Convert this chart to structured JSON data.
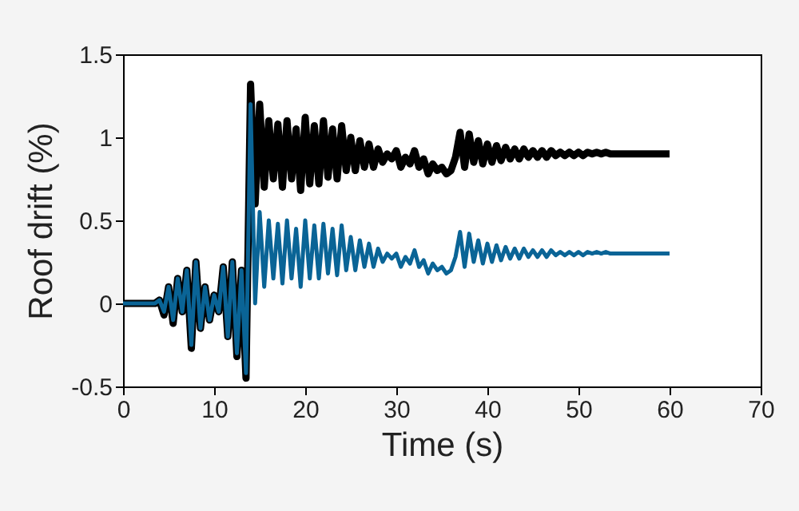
{
  "chart_data": {
    "type": "line",
    "xlabel": "Time (s)",
    "ylabel": "Roof drift (%)",
    "x": [
      0,
      0.5,
      1,
      1.5,
      2,
      2.5,
      3,
      3.5,
      4,
      4.5,
      5,
      5.5,
      6,
      6.5,
      7,
      7.5,
      8,
      8.5,
      9,
      9.5,
      10,
      10.5,
      11,
      11.5,
      12,
      12.5,
      13,
      13.5,
      14,
      14.5,
      15,
      15.5,
      16,
      16.5,
      17,
      17.5,
      18,
      18.5,
      19,
      19.5,
      20,
      20.5,
      21,
      21.5,
      22,
      22.5,
      23,
      23.5,
      24,
      24.5,
      25,
      25.5,
      26,
      26.5,
      27,
      27.5,
      28,
      28.5,
      29,
      29.5,
      30,
      30.5,
      31,
      31.5,
      32,
      32.5,
      33,
      33.5,
      34,
      34.5,
      35,
      35.5,
      36,
      36.5,
      37,
      37.5,
      38,
      38.5,
      39,
      39.5,
      40,
      40.5,
      41,
      41.5,
      42,
      42.5,
      43,
      43.5,
      44,
      44.5,
      45,
      45.5,
      46,
      46.5,
      47,
      47.5,
      48,
      48.5,
      49,
      49.5,
      50,
      50.5,
      51,
      51.5,
      52,
      52.5,
      53,
      53.5,
      54,
      54.5,
      55,
      55.5,
      56,
      56.5,
      57,
      57.5,
      58,
      58.5,
      59,
      59.5,
      60
    ],
    "series": [
      {
        "color": "#000000",
        "values": [
          0,
          0,
          0,
          0,
          0,
          0,
          0,
          0,
          0.02,
          -0.07,
          0.1,
          -0.12,
          0.15,
          -0.05,
          0.2,
          -0.27,
          0.25,
          -0.15,
          0.1,
          -0.1,
          0.05,
          -0.05,
          0.22,
          -0.2,
          0.25,
          -0.32,
          0.2,
          -0.45,
          1.32,
          0.6,
          1.2,
          0.7,
          1.1,
          0.75,
          1.08,
          0.7,
          1.1,
          0.75,
          1.05,
          0.68,
          1.12,
          0.72,
          1.07,
          0.72,
          1.1,
          0.76,
          1.05,
          0.75,
          1.07,
          0.8,
          1.0,
          0.8,
          0.98,
          0.82,
          0.96,
          0.82,
          0.93,
          0.85,
          0.9,
          0.87,
          0.92,
          0.82,
          0.88,
          0.84,
          0.92,
          0.82,
          0.87,
          0.78,
          0.84,
          0.8,
          0.82,
          0.78,
          0.8,
          0.88,
          1.03,
          0.82,
          1.02,
          0.85,
          0.98,
          0.84,
          0.96,
          0.85,
          0.95,
          0.86,
          0.94,
          0.87,
          0.93,
          0.87,
          0.93,
          0.88,
          0.92,
          0.88,
          0.92,
          0.88,
          0.92,
          0.89,
          0.91,
          0.89,
          0.91,
          0.89,
          0.91,
          0.89,
          0.91,
          0.9,
          0.91,
          0.9,
          0.91,
          0.9,
          0.9,
          0.9,
          0.9,
          0.9,
          0.9,
          0.9,
          0.9,
          0.9,
          0.9,
          0.9,
          0.9,
          0.9,
          0.9
        ]
      },
      {
        "color": "#0a6496",
        "values": [
          0,
          0,
          0,
          0,
          0,
          0,
          0,
          0,
          0.02,
          -0.05,
          0.1,
          -0.1,
          0.15,
          -0.05,
          0.2,
          -0.25,
          0.25,
          -0.15,
          0.1,
          -0.1,
          0.05,
          -0.05,
          0.22,
          -0.2,
          0.25,
          -0.3,
          0.2,
          -0.42,
          1.2,
          0.0,
          0.55,
          0.1,
          0.5,
          0.15,
          0.48,
          0.12,
          0.5,
          0.15,
          0.45,
          0.1,
          0.5,
          0.15,
          0.47,
          0.15,
          0.48,
          0.18,
          0.45,
          0.17,
          0.47,
          0.2,
          0.4,
          0.2,
          0.38,
          0.22,
          0.36,
          0.22,
          0.33,
          0.25,
          0.3,
          0.27,
          0.3,
          0.22,
          0.28,
          0.24,
          0.32,
          0.22,
          0.26,
          0.18,
          0.24,
          0.2,
          0.22,
          0.18,
          0.2,
          0.28,
          0.43,
          0.22,
          0.42,
          0.25,
          0.38,
          0.24,
          0.36,
          0.25,
          0.35,
          0.26,
          0.34,
          0.27,
          0.33,
          0.27,
          0.33,
          0.28,
          0.32,
          0.28,
          0.32,
          0.28,
          0.32,
          0.29,
          0.31,
          0.29,
          0.31,
          0.29,
          0.31,
          0.29,
          0.31,
          0.3,
          0.31,
          0.3,
          0.31,
          0.3,
          0.3,
          0.3,
          0.3,
          0.3,
          0.3,
          0.3,
          0.3,
          0.3,
          0.3,
          0.3,
          0.3,
          0.3,
          0.3
        ]
      }
    ],
    "xlim": [
      0,
      70
    ],
    "xticks": [
      0,
      10,
      20,
      30,
      40,
      50,
      60,
      70
    ],
    "ylim": [
      -0.5,
      1.5
    ],
    "yticks": [
      -0.5,
      0,
      0.5,
      1,
      1.5
    ],
    "grid": false,
    "line_style": "solid",
    "marker": "none"
  }
}
